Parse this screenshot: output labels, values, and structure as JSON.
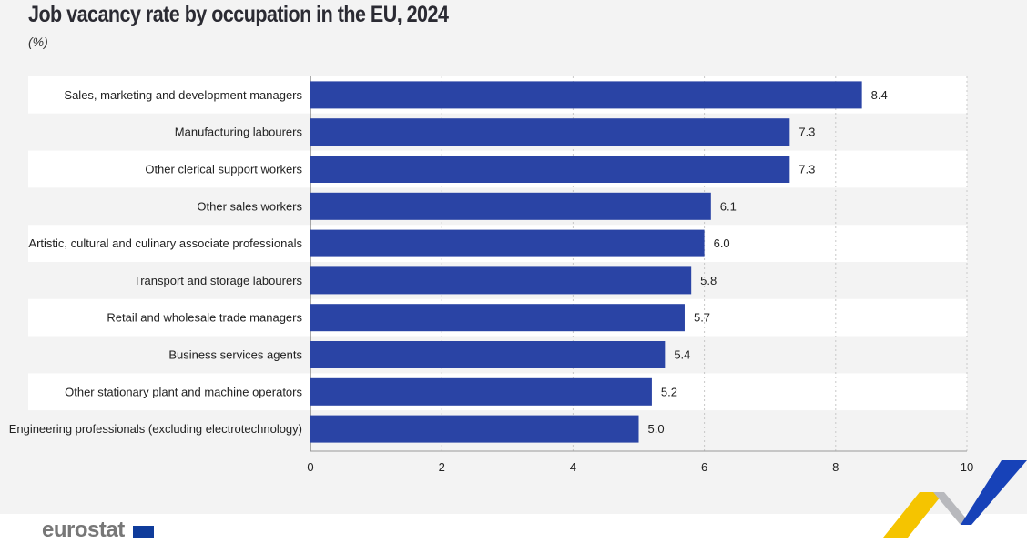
{
  "chart_data": {
    "type": "bar",
    "orientation": "horizontal",
    "title": "Job vacancy rate by occupation in the EU, 2024",
    "subtitle": "(%)",
    "categories": [
      "Sales, marketing and development managers",
      "Manufacturing labourers",
      "Other clerical support workers",
      "Other sales workers",
      "Artistic, cultural and culinary associate professionals",
      "Transport and storage labourers",
      "Retail and wholesale trade managers",
      "Business services agents",
      "Other stationary plant and machine operators",
      "Engineering professionals (excluding electrotechnology)"
    ],
    "values": [
      8.4,
      7.3,
      7.3,
      6.1,
      6.0,
      5.8,
      5.7,
      5.4,
      5.2,
      5.0
    ],
    "value_labels": [
      "8.4",
      "7.3",
      "7.3",
      "6.1",
      "6.0",
      "5.8",
      "5.7",
      "5.4",
      "5.2",
      "5.0"
    ],
    "xlim": [
      0,
      10
    ],
    "xticks": [
      "0",
      "2",
      "4",
      "6",
      "8",
      "10"
    ],
    "grid": true,
    "bar_color": "#2a44a5"
  },
  "footer": {
    "logo": "eurostat"
  }
}
